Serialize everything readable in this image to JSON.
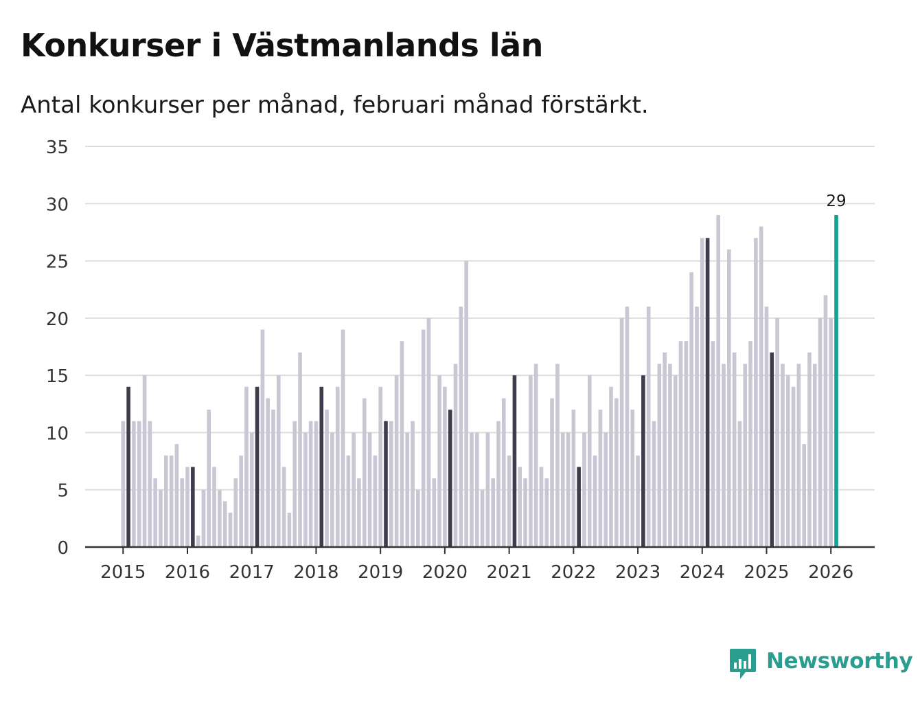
{
  "title": "Konkurser i Västmanlands län",
  "subtitle": "Antal konkurser per månad, februari månad förstärkt.",
  "brand": {
    "name": "Newsworthy",
    "color": "#2a9d8f"
  },
  "colors": {
    "bar": "#c8c7d4",
    "highlight": "#3d3d4e",
    "latest": "#12a395",
    "grid": "#dddddd",
    "axis": "#333333"
  },
  "chart_data": {
    "type": "bar",
    "x_start": "2015-01",
    "x_end": "2026-02",
    "ylim": [
      0,
      35
    ],
    "yticks": [
      0,
      5,
      10,
      15,
      20,
      25,
      30,
      35
    ],
    "xtick_labels": [
      "2015",
      "2016",
      "2017",
      "2018",
      "2019",
      "2020",
      "2021",
      "2022",
      "2023",
      "2024",
      "2025",
      "2026"
    ],
    "highlight": "februari",
    "grid": true,
    "latest_label": "29",
    "values": [
      11,
      14,
      11,
      11,
      15,
      11,
      6,
      5,
      8,
      8,
      9,
      6,
      7,
      7,
      1,
      5,
      12,
      7,
      5,
      4,
      3,
      6,
      8,
      14,
      10,
      14,
      19,
      13,
      12,
      15,
      7,
      3,
      11,
      17,
      10,
      11,
      11,
      14,
      12,
      10,
      14,
      19,
      8,
      10,
      6,
      13,
      10,
      8,
      14,
      11,
      11,
      15,
      18,
      10,
      11,
      5,
      19,
      20,
      6,
      15,
      14,
      12,
      16,
      21,
      25,
      10,
      10,
      5,
      10,
      6,
      11,
      13,
      8,
      15,
      7,
      6,
      15,
      16,
      7,
      6,
      13,
      16,
      10,
      10,
      12,
      7,
      10,
      15,
      8,
      12,
      10,
      14,
      13,
      20,
      21,
      12,
      8,
      15,
      21,
      11,
      16,
      17,
      16,
      15,
      18,
      18,
      24,
      21,
      27,
      27,
      18,
      29,
      16,
      26,
      17,
      11,
      16,
      18,
      27,
      28,
      21,
      17,
      20,
      16,
      15,
      14,
      16,
      9,
      17,
      16,
      20,
      22,
      20,
      29
    ]
  }
}
